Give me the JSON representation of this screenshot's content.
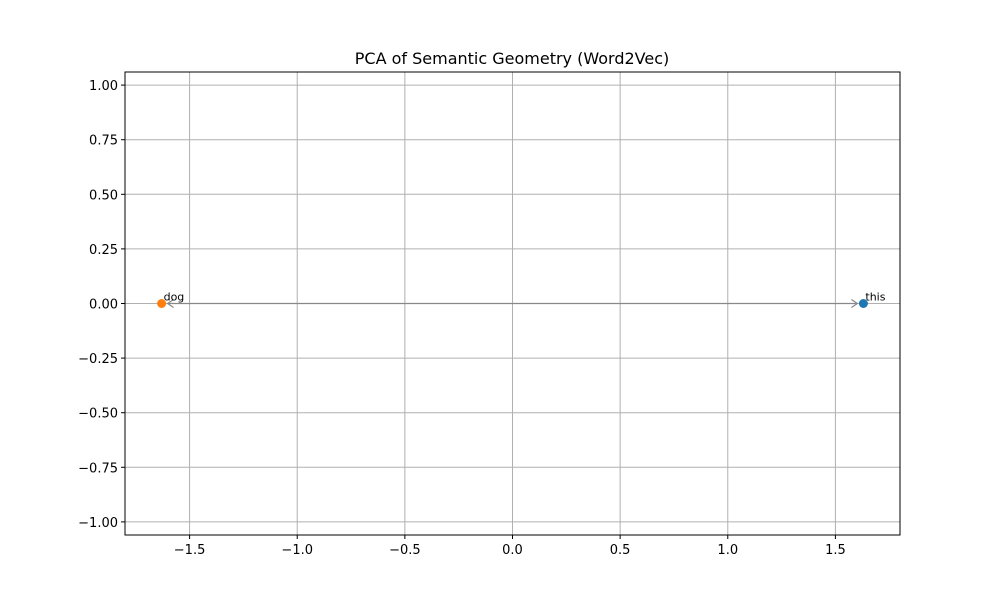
{
  "chart_data": {
    "type": "scatter",
    "title": "PCA of Semantic Geometry (Word2Vec)",
    "xlabel": "",
    "ylabel": "",
    "xlim": [
      -1.8,
      1.8
    ],
    "ylim": [
      -1.06,
      1.06
    ],
    "x_ticks": [
      -1.5,
      -1.0,
      -0.5,
      0.0,
      0.5,
      1.0,
      1.5
    ],
    "x_tick_labels": [
      "−1.5",
      "−1.0",
      "−0.5",
      "0.0",
      "0.5",
      "1.0",
      "1.5"
    ],
    "y_ticks": [
      1.0,
      0.75,
      0.5,
      0.25,
      0.0,
      -0.25,
      -0.5,
      -0.75,
      -1.0
    ],
    "y_tick_labels": [
      "1.00",
      "0.75",
      "0.50",
      "0.25",
      "0.00",
      "−0.25",
      "−0.50",
      "−0.75",
      "−1.00"
    ],
    "grid": true,
    "points": [
      {
        "label": "this",
        "x": 1.63,
        "y": 0.0,
        "color": "#1f77b4"
      },
      {
        "label": "dog",
        "x": -1.63,
        "y": 0.0,
        "color": "#ff7f0e"
      }
    ],
    "arrows": [
      {
        "from": "dog",
        "to": "this",
        "color": "#888888"
      }
    ]
  }
}
